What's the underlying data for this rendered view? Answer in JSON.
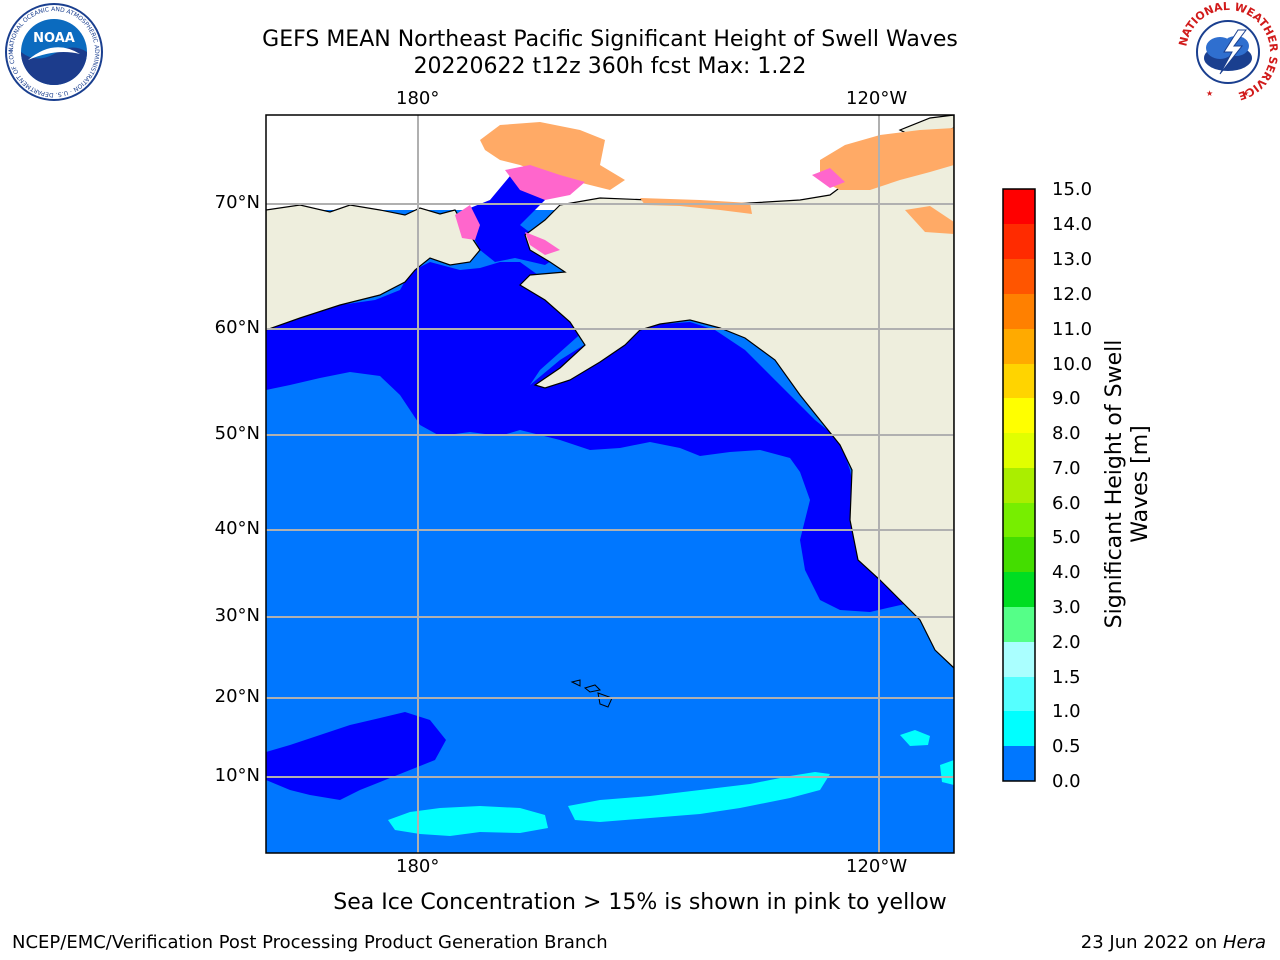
{
  "title": {
    "line1": "GEFS MEAN Northeast Pacific Significant Height of Swell Waves",
    "line2": "20220622 t12z 360h fcst   Max: 1.22"
  },
  "logos": {
    "noaa_text": "NOAA",
    "noaa_ring": "NATIONAL OCEANIC AND ATMOSPHERIC ADMINISTRATION · U.S. DEPARTMENT OF COMMERCE",
    "nws_ring": "NATIONAL WEATHER SERVICE"
  },
  "map": {
    "lon_labels": [
      "180°",
      "120°W"
    ],
    "lat_labels": [
      "70°N",
      "60°N",
      "50°N",
      "40°N",
      "30°N",
      "20°N",
      "10°N"
    ],
    "colors": {
      "land": "#eeeedd",
      "ocean_low": "#0000ff",
      "ocean_mid": "#0077ff",
      "ocean_high": "#00ffff",
      "ice_pink": "#ff66cc",
      "ice_orange": "#ffaa66",
      "gridline": "#b0b0b0"
    }
  },
  "colorbar": {
    "label": "Significant Height of Swell Waves [m]",
    "ticks": [
      "15.0",
      "14.0",
      "13.0",
      "12.0",
      "11.0",
      "10.0",
      "9.0",
      "8.0",
      "7.0",
      "6.0",
      "5.0",
      "4.0",
      "3.0",
      "2.0",
      "1.5",
      "1.0",
      "0.5",
      "0.0"
    ],
    "colors": [
      "#ff0000",
      "#ff2b00",
      "#ff5500",
      "#ff8000",
      "#ffaa00",
      "#ffd400",
      "#ffff00",
      "#e1ff00",
      "#aaee00",
      "#77ee00",
      "#44dd00",
      "#00dd22",
      "#55ff88",
      "#aaffff",
      "#55ffff",
      "#00ffff",
      "#0077ff",
      "#0000ff"
    ]
  },
  "note": "Sea Ice Concentration > 15% is shown in pink to yellow",
  "footer": {
    "left": "NCEP/EMC/Verification Post Processing Product Generation Branch",
    "right_prefix": "23 Jun 2022 on ",
    "right_host": "Hera"
  }
}
